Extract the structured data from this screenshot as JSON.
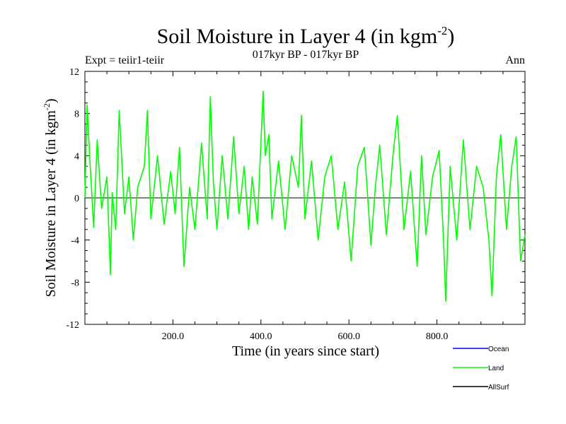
{
  "chart_data": {
    "type": "line",
    "title": "Soil Moisture in Layer 4 (in kgm",
    "title_sup": "-2",
    "title_tail": ")",
    "subtitle": "017kyr BP - 017kyr BP",
    "expt_label": "Expt = teiir1-teiir",
    "season_label": "Ann",
    "xlabel": "Time (in years since start)",
    "ylabel": "Soil Moisture in Layer 4 (in kgm",
    "ylabel_sup": "-2",
    "ylabel_tail": ")",
    "xlim": [
      0,
      1000
    ],
    "ylim": [
      -12,
      12
    ],
    "x_ticks": [
      200,
      400,
      600,
      800
    ],
    "x_tick_labels": [
      "200.0",
      "400.0",
      "600.0",
      "800.0"
    ],
    "y_ticks": [
      -12,
      -8,
      -4,
      0,
      4,
      8,
      12
    ],
    "y_tick_labels": [
      "-12",
      "-8",
      "-4",
      "0",
      "4",
      "8",
      "12"
    ],
    "zero_line": true,
    "legend_position": "bottom-right",
    "series": [
      {
        "name": "Ocean",
        "color": "#0000ff",
        "x": [],
        "values": []
      },
      {
        "name": "Land",
        "color": "#00ff00",
        "x": [
          0,
          5,
          12,
          20,
          28,
          38,
          50,
          58,
          62,
          70,
          78,
          90,
          100,
          110,
          120,
          135,
          142,
          150,
          165,
          180,
          195,
          205,
          215,
          225,
          238,
          250,
          265,
          278,
          285,
          292,
          300,
          312,
          325,
          338,
          350,
          362,
          372,
          380,
          392,
          405,
          410,
          418,
          425,
          440,
          455,
          470,
          485,
          492,
          500,
          515,
          530,
          545,
          560,
          575,
          590,
          605,
          620,
          635,
          650,
          660,
          670,
          685,
          700,
          710,
          725,
          740,
          755,
          765,
          775,
          790,
          805,
          815,
          820,
          830,
          845,
          860,
          875,
          890,
          905,
          918,
          925,
          935,
          945,
          958,
          970,
          980,
          990,
          1000
        ],
        "values": [
          0,
          8.8,
          3,
          -2.8,
          5.5,
          -1,
          2,
          -7.3,
          0.5,
          -3,
          8.3,
          -1.5,
          2,
          -4,
          1,
          3,
          8.3,
          -2,
          4,
          -2.5,
          2.5,
          -1.5,
          4.8,
          -6.5,
          1,
          -3,
          5.2,
          -2,
          9.6,
          1.5,
          -3,
          4,
          -2,
          5.8,
          -1.5,
          3,
          -3,
          2,
          -2.5,
          10.1,
          4,
          6,
          -2,
          3.5,
          -3,
          4,
          1,
          7.8,
          -2,
          3.5,
          -4,
          2,
          4,
          -3,
          1.5,
          -6,
          3,
          4.8,
          -4.5,
          1,
          5,
          -3.5,
          4,
          7.8,
          -3,
          2.5,
          -6.5,
          4,
          -3.5,
          2,
          4.5,
          -4,
          -9.8,
          3,
          -4,
          5.5,
          -3,
          3,
          1,
          -4,
          -9.3,
          2,
          6,
          -3,
          3,
          5.8,
          -6,
          -3.5
        ]
      },
      {
        "name": "AllSurf",
        "color": "#000000",
        "x": [],
        "values": []
      }
    ]
  }
}
